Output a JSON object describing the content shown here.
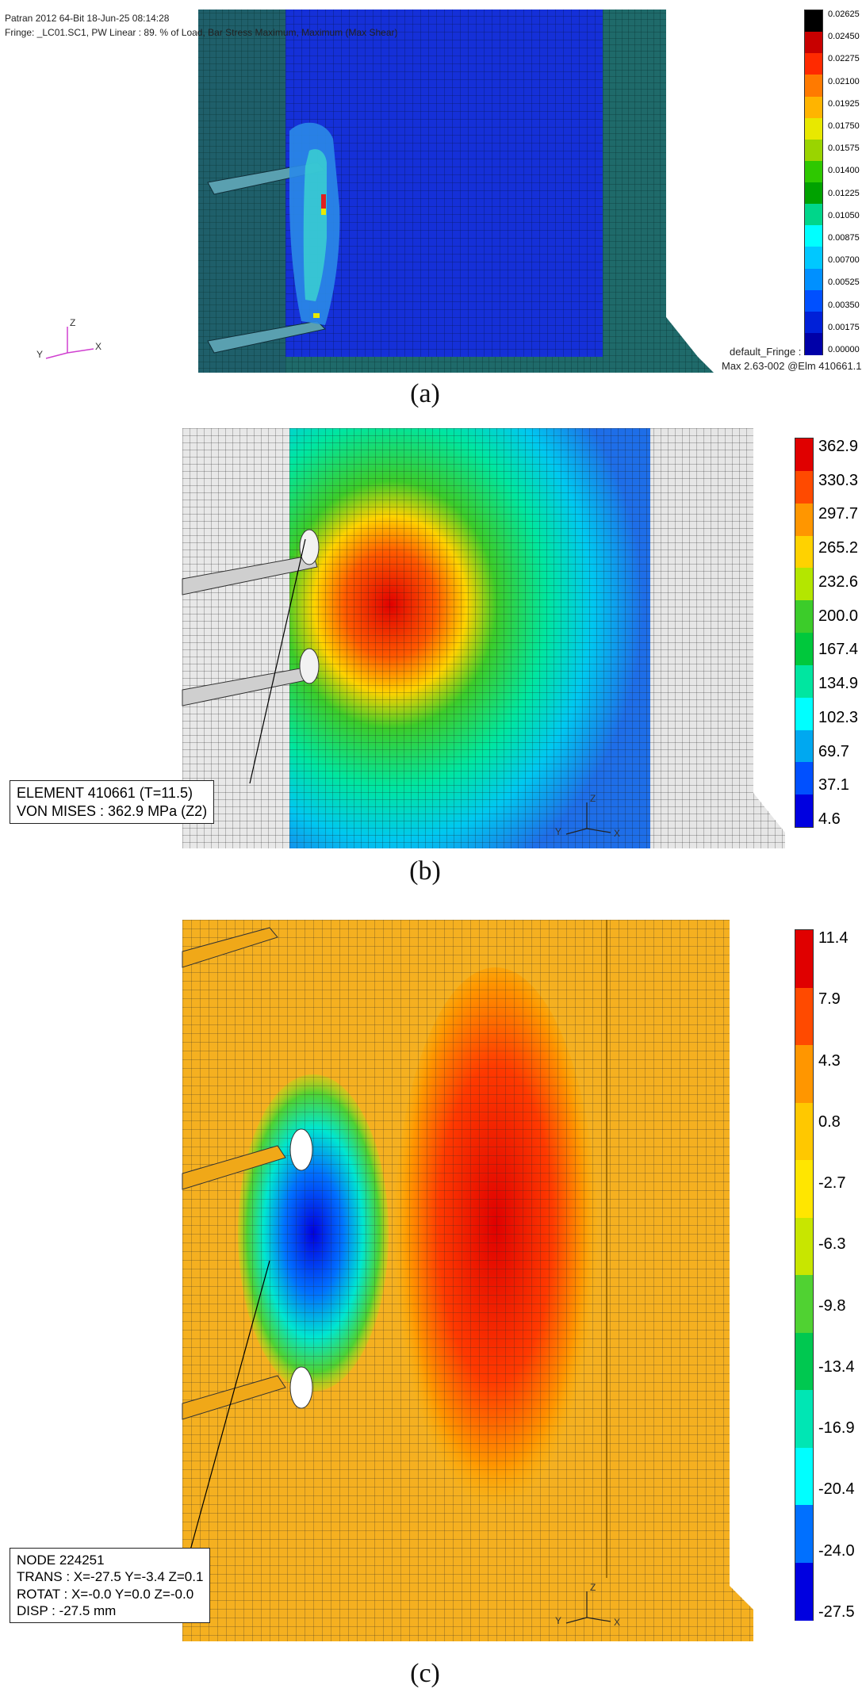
{
  "panel_a": {
    "header_line1": "Patran 2012 64-Bit 18-Jun-25 08:14:28",
    "header_line2": "Fringe: _LC01.SC1, PW Linear : 89. % of Load, Bar Stress Maximum, Maximum (Max Shear)",
    "legend_ticks": [
      "0.02625",
      "0.02450",
      "0.02275",
      "0.02100",
      "0.01925",
      "0.01750",
      "0.01575",
      "0.01400",
      "0.01225",
      "0.01050",
      "0.00875",
      "0.00700",
      "0.00525",
      "0.00350",
      "0.00175",
      "0.00000"
    ],
    "legend_colors": [
      "#000000",
      "#c80000",
      "#ff2a00",
      "#ff7a00",
      "#ffb400",
      "#e8e800",
      "#9ad400",
      "#2ec800",
      "#00a200",
      "#00d68a",
      "#00ffff",
      "#00c8ff",
      "#0090ff",
      "#0050ff",
      "#0020d8",
      "#0000a8"
    ],
    "footer_line1": "default_Fringe :",
    "footer_line2": "Max 2.63-002 @Elm 410661.1",
    "triad": {
      "z": "Z",
      "y": "Y",
      "x": "X"
    },
    "caption": "(a)"
  },
  "panel_b": {
    "legend_ticks": [
      "362.9",
      "330.3",
      "297.7",
      "265.2",
      "232.6",
      "200.0",
      "167.4",
      "134.9",
      "102.3",
      "69.7",
      "37.1",
      "4.6"
    ],
    "legend_colors": [
      "#e00000",
      "#ff4a00",
      "#ff9600",
      "#ffd200",
      "#b4e600",
      "#3ccc2a",
      "#00c83c",
      "#00e6a0",
      "#00ffff",
      "#00a8f0",
      "#0050ff",
      "#0000e0"
    ],
    "info_line1": "ELEMENT 410661 (T=11.5)",
    "info_line2": "VON MISES : 362.9 MPa (Z2)",
    "triad": {
      "z": "Z",
      "y": "Y",
      "x": "X"
    },
    "caption": "(b)"
  },
  "panel_c": {
    "legend_ticks": [
      "11.4",
      "7.9",
      "4.3",
      "0.8",
      "-2.7",
      "-6.3",
      "-9.8",
      "-13.4",
      "-16.9",
      "-20.4",
      "-24.0",
      "-27.5"
    ],
    "legend_colors": [
      "#e00000",
      "#ff4a00",
      "#ff9600",
      "#ffc800",
      "#ffe600",
      "#c8e600",
      "#50d232",
      "#00c850",
      "#00e6b4",
      "#00ffff",
      "#0070ff",
      "#0000e0"
    ],
    "info_line1": "NODE 224251",
    "info_line2": "TRANS : X=-27.5  Y=-3.4  Z=0.1",
    "info_line3": "ROTAT : X=-0.0  Y=0.0  Z=-0.0",
    "info_line4": "DISP : -27.5 mm",
    "triad": {
      "z": "Z",
      "y": "Y",
      "x": "X"
    },
    "caption": "(c)"
  }
}
